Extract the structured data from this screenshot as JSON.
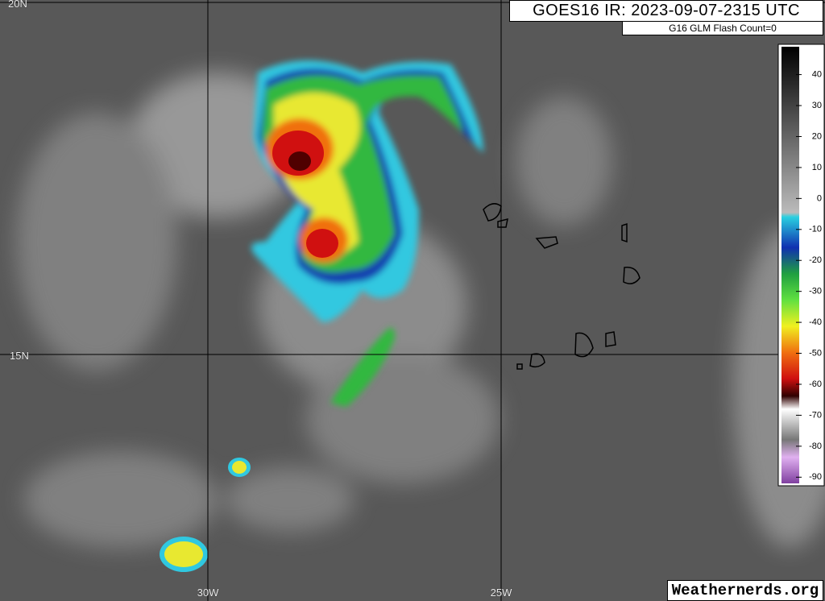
{
  "header": {
    "title": "GOES16 IR: 2023-09-07-2315 UTC",
    "subtitle": "G16 GLM Flash Count=0"
  },
  "graticule": {
    "latitudes": [
      "20N",
      "15N"
    ],
    "longitudes": [
      "30W",
      "25W"
    ]
  },
  "colorbar": {
    "range": [
      49,
      -92
    ],
    "ticks": [
      40,
      30,
      20,
      10,
      0,
      -10,
      -20,
      -30,
      -40,
      -50,
      -60,
      -70,
      -80,
      -90
    ]
  },
  "footer": {
    "credit": "Weathernerds.org"
  }
}
